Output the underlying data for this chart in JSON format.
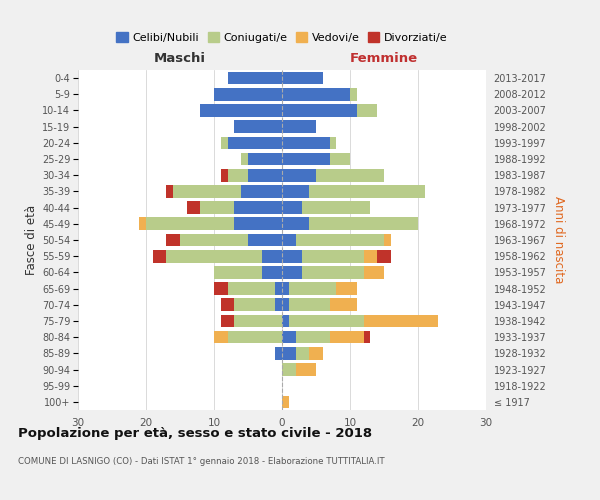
{
  "age_groups": [
    "100+",
    "95-99",
    "90-94",
    "85-89",
    "80-84",
    "75-79",
    "70-74",
    "65-69",
    "60-64",
    "55-59",
    "50-54",
    "45-49",
    "40-44",
    "35-39",
    "30-34",
    "25-29",
    "20-24",
    "15-19",
    "10-14",
    "5-9",
    "0-4"
  ],
  "birth_years": [
    "≤ 1917",
    "1918-1922",
    "1923-1927",
    "1928-1932",
    "1933-1937",
    "1938-1942",
    "1943-1947",
    "1948-1952",
    "1953-1957",
    "1958-1962",
    "1963-1967",
    "1968-1972",
    "1973-1977",
    "1978-1982",
    "1983-1987",
    "1988-1992",
    "1993-1997",
    "1998-2002",
    "2003-2007",
    "2008-2012",
    "2013-2017"
  ],
  "colors": {
    "celibi": "#4472c4",
    "coniugati": "#b8cc8a",
    "vedovi": "#f0b050",
    "divorziati": "#c0332a"
  },
  "maschi": {
    "celibi": [
      0,
      0,
      0,
      1,
      0,
      0,
      1,
      1,
      3,
      3,
      5,
      7,
      7,
      6,
      5,
      5,
      8,
      7,
      12,
      10,
      8
    ],
    "coniugati": [
      0,
      0,
      0,
      0,
      8,
      7,
      6,
      7,
      7,
      14,
      10,
      13,
      5,
      10,
      3,
      1,
      1,
      0,
      0,
      0,
      0
    ],
    "vedovi": [
      0,
      0,
      0,
      0,
      2,
      0,
      0,
      0,
      0,
      0,
      0,
      1,
      0,
      0,
      0,
      0,
      0,
      0,
      0,
      0,
      0
    ],
    "divorziati": [
      0,
      0,
      0,
      0,
      0,
      2,
      2,
      2,
      0,
      2,
      2,
      0,
      2,
      1,
      1,
      0,
      0,
      0,
      0,
      0,
      0
    ]
  },
  "femmine": {
    "celibi": [
      0,
      0,
      0,
      2,
      2,
      1,
      1,
      1,
      3,
      3,
      2,
      4,
      3,
      4,
      5,
      7,
      7,
      5,
      11,
      10,
      6
    ],
    "coniugati": [
      0,
      0,
      2,
      2,
      5,
      11,
      6,
      7,
      9,
      9,
      13,
      16,
      10,
      17,
      10,
      3,
      1,
      0,
      3,
      1,
      0
    ],
    "vedovi": [
      1,
      0,
      3,
      2,
      5,
      11,
      4,
      3,
      3,
      2,
      1,
      0,
      0,
      0,
      0,
      0,
      0,
      0,
      0,
      0,
      0
    ],
    "divorziati": [
      0,
      0,
      0,
      0,
      1,
      0,
      0,
      0,
      0,
      2,
      0,
      0,
      0,
      0,
      0,
      0,
      0,
      0,
      0,
      0,
      0
    ]
  },
  "xlim": 30,
  "title": "Popolazione per età, sesso e stato civile - 2018",
  "subtitle": "COMUNE DI LASNIGO (CO) - Dati ISTAT 1° gennaio 2018 - Elaborazione TUTTITALIA.IT",
  "ylabel_left": "Fasce di età",
  "ylabel_right": "Anni di nascita",
  "xlabel_left": "Maschi",
  "xlabel_right": "Femmine",
  "legend_labels": [
    "Celibi/Nubili",
    "Coniugati/e",
    "Vedovi/e",
    "Divorziati/e"
  ],
  "bg_color": "#f0f0f0",
  "plot_bg": "#ffffff"
}
